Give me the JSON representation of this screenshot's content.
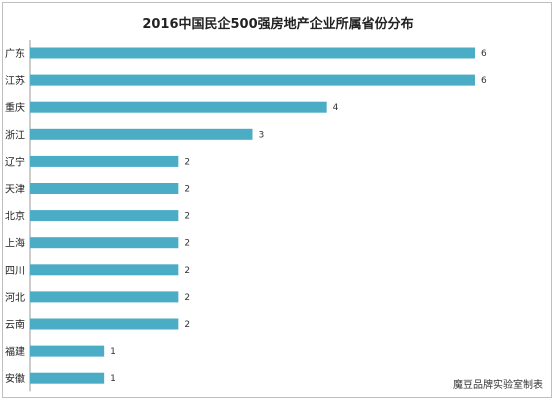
{
  "chart_data": {
    "type": "bar",
    "orientation": "horizontal",
    "title": "2016中国民企500强房地产企业所属省份分布",
    "categories": [
      "广东",
      "江苏",
      "重庆",
      "浙江",
      "辽宁",
      "天津",
      "北京",
      "上海",
      "四川",
      "河北",
      "云南",
      "福建",
      "安徽"
    ],
    "values": [
      6,
      6,
      4,
      3,
      2,
      2,
      2,
      2,
      2,
      2,
      2,
      1,
      1
    ],
    "xlim": [
      0,
      6
    ],
    "grid": false,
    "legend": false,
    "bar_color": "#4bacc6"
  },
  "source_note": "魔豆品牌实验室制表"
}
